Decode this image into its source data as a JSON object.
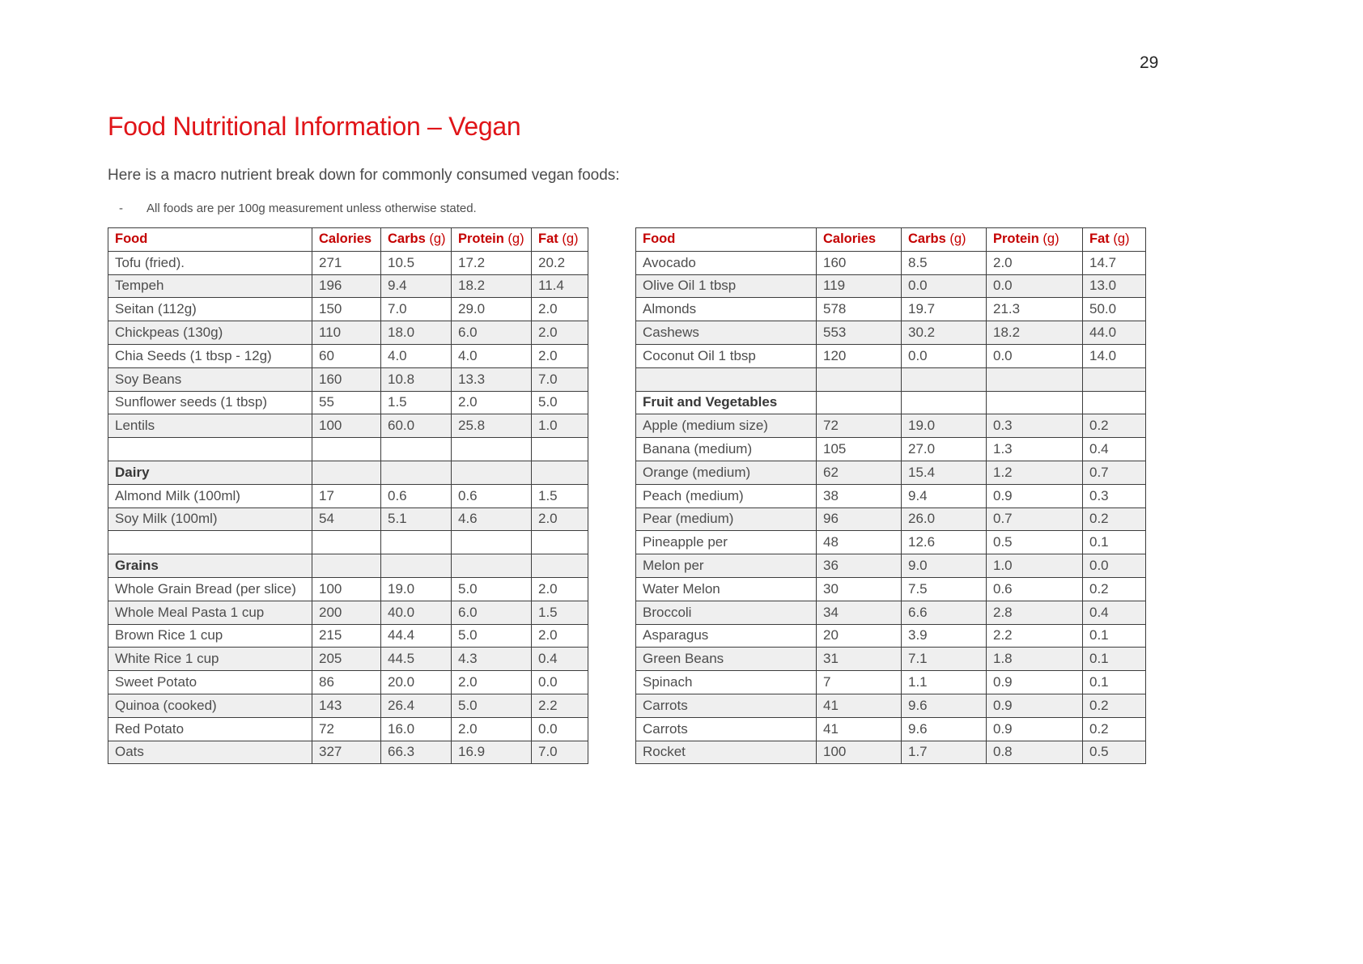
{
  "page": {
    "number": "29"
  },
  "title": "Food Nutritional Information – Vegan",
  "subtitle": "Here is a macro nutrient break down for commonly consumed vegan foods:",
  "note": {
    "bullet": "-",
    "text": "All foods are per 100g measurement unless otherwise stated."
  },
  "colors": {
    "title_red": "#e01418",
    "header_red": "#c40000",
    "body_text": "#4d4d4d",
    "section_text": "#383838",
    "row_alt_bg": "#efefef",
    "border": "#3d3d3d"
  },
  "tables": [
    {
      "name": "vegan-foods-left",
      "headers": [
        {
          "key": "food",
          "label": "Food",
          "unit": ""
        },
        {
          "key": "calories",
          "label": "Calories",
          "unit": ""
        },
        {
          "key": "carbs",
          "label": "Carbs",
          "unit": "(g)"
        },
        {
          "key": "protein",
          "label": "Protein",
          "unit": "(g)"
        },
        {
          "key": "fat",
          "label": "Fat",
          "unit": "(g)"
        }
      ],
      "rows": [
        {
          "kind": "data",
          "cells": [
            "Tofu (fried).",
            "271",
            "10.5",
            "17.2",
            "20.2"
          ]
        },
        {
          "kind": "data",
          "cells": [
            "Tempeh",
            "196",
            "9.4",
            "18.2",
            "11.4"
          ]
        },
        {
          "kind": "data",
          "cells": [
            "Seitan (112g)",
            "150",
            "7.0",
            "29.0",
            "2.0"
          ]
        },
        {
          "kind": "data",
          "cells": [
            "Chickpeas (130g)",
            "110",
            "18.0",
            "6.0",
            "2.0"
          ]
        },
        {
          "kind": "data",
          "cells": [
            "Chia Seeds (1 tbsp - 12g)",
            "60",
            "4.0",
            "4.0",
            "2.0"
          ]
        },
        {
          "kind": "data",
          "cells": [
            "Soy Beans",
            "160",
            "10.8",
            "13.3",
            "7.0"
          ]
        },
        {
          "kind": "data",
          "cells": [
            "Sunflower seeds (1 tbsp)",
            "55",
            "1.5",
            "2.0",
            "5.0"
          ]
        },
        {
          "kind": "data",
          "cells": [
            "Lentils",
            "100",
            "60.0",
            "25.8",
            "1.0"
          ]
        },
        {
          "kind": "empty",
          "cells": [
            "",
            "",
            "",
            "",
            ""
          ]
        },
        {
          "kind": "section",
          "cells": [
            "Dairy",
            "",
            "",
            "",
            ""
          ]
        },
        {
          "kind": "data",
          "cells": [
            "Almond Milk (100ml)",
            "17",
            "0.6",
            "0.6",
            "1.5"
          ]
        },
        {
          "kind": "data",
          "cells": [
            "Soy Milk (100ml)",
            "54",
            "5.1",
            "4.6",
            "2.0"
          ]
        },
        {
          "kind": "empty",
          "cells": [
            "",
            "",
            "",
            "",
            ""
          ]
        },
        {
          "kind": "section",
          "cells": [
            "Grains",
            "",
            "",
            "",
            ""
          ]
        },
        {
          "kind": "data",
          "cells": [
            "Whole Grain Bread (per slice)",
            "100",
            "19.0",
            "5.0",
            "2.0"
          ]
        },
        {
          "kind": "data",
          "cells": [
            "Whole Meal Pasta 1 cup",
            "200",
            "40.0",
            "6.0",
            "1.5"
          ]
        },
        {
          "kind": "data",
          "cells": [
            "Brown Rice 1 cup",
            "215",
            "44.4",
            "5.0",
            "2.0"
          ]
        },
        {
          "kind": "data",
          "cells": [
            "White Rice 1 cup",
            "205",
            "44.5",
            "4.3",
            "0.4"
          ]
        },
        {
          "kind": "data",
          "cells": [
            "Sweet Potato",
            "86",
            "20.0",
            "2.0",
            "0.0"
          ]
        },
        {
          "kind": "data",
          "cells": [
            "Quinoa (cooked)",
            "143",
            "26.4",
            "5.0",
            "2.2"
          ]
        },
        {
          "kind": "data",
          "cells": [
            "Red Potato",
            "72",
            "16.0",
            "2.0",
            "0.0"
          ]
        },
        {
          "kind": "data",
          "cells": [
            "Oats",
            "327",
            "66.3",
            "16.9",
            "7.0"
          ]
        }
      ]
    },
    {
      "name": "vegan-foods-right",
      "headers": [
        {
          "key": "food",
          "label": "Food",
          "unit": ""
        },
        {
          "key": "calories",
          "label": "Calories",
          "unit": ""
        },
        {
          "key": "carbs",
          "label": "Carbs",
          "unit": "(g)"
        },
        {
          "key": "protein",
          "label": "Protein",
          "unit": "(g)"
        },
        {
          "key": "fat",
          "label": "Fat",
          "unit": "(g)"
        }
      ],
      "rows": [
        {
          "kind": "data",
          "cells": [
            "Avocado",
            "160",
            "8.5",
            "2.0",
            "14.7"
          ]
        },
        {
          "kind": "data",
          "cells": [
            "Olive Oil 1 tbsp",
            "119",
            "0.0",
            "0.0",
            "13.0"
          ]
        },
        {
          "kind": "data",
          "cells": [
            "Almonds",
            "578",
            "19.7",
            "21.3",
            "50.0"
          ]
        },
        {
          "kind": "data",
          "cells": [
            "Cashews",
            "553",
            "30.2",
            "18.2",
            "44.0"
          ]
        },
        {
          "kind": "data",
          "cells": [
            "Coconut Oil 1 tbsp",
            "120",
            "0.0",
            "0.0",
            "14.0"
          ]
        },
        {
          "kind": "empty",
          "cells": [
            "",
            "",
            "",
            "",
            ""
          ]
        },
        {
          "kind": "section",
          "cells": [
            "Fruit and Vegetables",
            "",
            "",
            "",
            ""
          ]
        },
        {
          "kind": "data",
          "cells": [
            "Apple (medium size)",
            "72",
            "19.0",
            "0.3",
            "0.2"
          ]
        },
        {
          "kind": "data",
          "cells": [
            "Banana (medium)",
            "105",
            "27.0",
            "1.3",
            "0.4"
          ]
        },
        {
          "kind": "data",
          "cells": [
            "Orange (medium)",
            "62",
            "15.4",
            "1.2",
            "0.7"
          ]
        },
        {
          "kind": "data",
          "cells": [
            "Peach (medium)",
            "38",
            "9.4",
            "0.9",
            "0.3"
          ]
        },
        {
          "kind": "data",
          "cells": [
            "Pear (medium)",
            "96",
            "26.0",
            "0.7",
            "0.2"
          ]
        },
        {
          "kind": "data",
          "cells": [
            "Pineapple per",
            "48",
            "12.6",
            "0.5",
            "0.1"
          ]
        },
        {
          "kind": "data",
          "cells": [
            "Melon per",
            "36",
            "9.0",
            "1.0",
            "0.0"
          ]
        },
        {
          "kind": "data",
          "cells": [
            "Water Melon",
            "30",
            "7.5",
            "0.6",
            "0.2"
          ]
        },
        {
          "kind": "data",
          "cells": [
            "Broccoli",
            "34",
            "6.6",
            "2.8",
            "0.4"
          ]
        },
        {
          "kind": "data",
          "cells": [
            "Asparagus",
            "20",
            "3.9",
            "2.2",
            "0.1"
          ]
        },
        {
          "kind": "data",
          "cells": [
            "Green Beans",
            "31",
            "7.1",
            "1.8",
            "0.1"
          ]
        },
        {
          "kind": "data",
          "cells": [
            "Spinach",
            "7",
            "1.1",
            "0.9",
            "0.1"
          ]
        },
        {
          "kind": "data",
          "cells": [
            "Carrots",
            "41",
            "9.6",
            "0.9",
            "0.2"
          ]
        },
        {
          "kind": "data",
          "cells": [
            "Carrots",
            "41",
            "9.6",
            "0.9",
            "0.2"
          ]
        },
        {
          "kind": "data",
          "cells": [
            "Rocket",
            "100",
            "1.7",
            "0.8",
            "0.5"
          ]
        }
      ]
    }
  ]
}
